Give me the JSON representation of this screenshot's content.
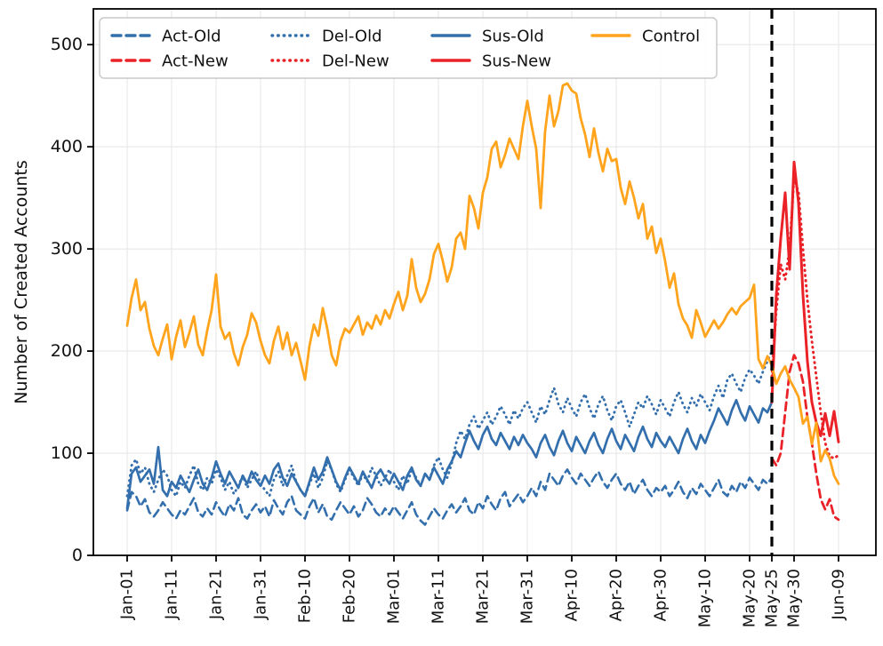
{
  "chart_data": {
    "type": "line",
    "title": "",
    "xlabel": "",
    "ylabel": "Number of Created Accounts",
    "x_unit": "days since Jan-01",
    "xlim": [
      -7.6,
      168.4
    ],
    "ylim": [
      0,
      535
    ],
    "grid": true,
    "grid_color": "#e7e7e7",
    "spine_color": "#000000",
    "tick_color": "#111111",
    "y_ticks": [
      0,
      100,
      200,
      300,
      400,
      500
    ],
    "x_ticks": [
      {
        "day": 0,
        "label": "Jan-01"
      },
      {
        "day": 10,
        "label": "Jan-11"
      },
      {
        "day": 20,
        "label": "Jan-21"
      },
      {
        "day": 30,
        "label": "Jan-31"
      },
      {
        "day": 40,
        "label": "Feb-10"
      },
      {
        "day": 50,
        "label": "Feb-20"
      },
      {
        "day": 60,
        "label": "Mar-01"
      },
      {
        "day": 70,
        "label": "Mar-11"
      },
      {
        "day": 80,
        "label": "Mar-21"
      },
      {
        "day": 90,
        "label": "Mar-31"
      },
      {
        "day": 100,
        "label": "Apr-10"
      },
      {
        "day": 110,
        "label": "Apr-20"
      },
      {
        "day": 120,
        "label": "Apr-30"
      },
      {
        "day": 130,
        "label": "May-10"
      },
      {
        "day": 140,
        "label": "May-20"
      },
      {
        "day": 145,
        "label": "May-25"
      },
      {
        "day": 150,
        "label": "May-30"
      },
      {
        "day": 160,
        "label": "Jun-09"
      }
    ],
    "event_line": {
      "day": 145,
      "date": "May-25",
      "color": "#000000",
      "style": "dashed"
    },
    "legend": {
      "position": "upper left",
      "border_color": "#c8c8c8",
      "entries": [
        "Act-Old",
        "Act-New",
        "Del-Old",
        "Del-New",
        "Sus-Old",
        "Sus-New",
        "Control"
      ]
    },
    "series": [
      {
        "name": "Act-Old",
        "color": "#346fad",
        "style": "dashed",
        "width": 2.6,
        "start_day": 0,
        "values": [
          44,
          62,
          58,
          48,
          55,
          42,
          38,
          44,
          52,
          46,
          40,
          36,
          44,
          40,
          48,
          56,
          42,
          38,
          46,
          40,
          52,
          44,
          38,
          50,
          44,
          56,
          40,
          36,
          44,
          50,
          42,
          48,
          38,
          54,
          46,
          40,
          52,
          58,
          44,
          40,
          36,
          48,
          56,
          42,
          50,
          38,
          35,
          44,
          52,
          46,
          40,
          48,
          38,
          44,
          56,
          50,
          42,
          38,
          46,
          40,
          48,
          42,
          36,
          44,
          52,
          40,
          34,
          30,
          38,
          46,
          40,
          36,
          44,
          50,
          42,
          48,
          56,
          44,
          40,
          52,
          46,
          58,
          50,
          44,
          56,
          62,
          48,
          54,
          60,
          52,
          58,
          66,
          58,
          72,
          64,
          80,
          74,
          68,
          78,
          84,
          76,
          70,
          80,
          74,
          68,
          76,
          82,
          72,
          66,
          74,
          80,
          70,
          64,
          72,
          60,
          68,
          74,
          64,
          58,
          66,
          62,
          68,
          58,
          64,
          72,
          62,
          56,
          66,
          60,
          70,
          64,
          58,
          66,
          74,
          62,
          58,
          68,
          62,
          72,
          66,
          76,
          70,
          64,
          74,
          70,
          76
        ]
      },
      {
        "name": "Act-New",
        "color": "#ea2127",
        "style": "dashed",
        "width": 2.8,
        "start_day": 145,
        "values": [
          95,
          88,
          100,
          140,
          180,
          196,
          188,
          170,
          135,
          110,
          80,
          55,
          45,
          55,
          38,
          35
        ]
      },
      {
        "name": "Del-Old",
        "color": "#346fad",
        "style": "dotted",
        "width": 2.8,
        "start_day": 0,
        "values": [
          58,
          88,
          94,
          80,
          86,
          70,
          62,
          74,
          84,
          78,
          64,
          58,
          72,
          66,
          78,
          88,
          70,
          64,
          76,
          70,
          84,
          76,
          64,
          72,
          60,
          68,
          78,
          66,
          74,
          82,
          70,
          64,
          58,
          74,
          82,
          68,
          78,
          88,
          72,
          64,
          58,
          70,
          80,
          66,
          76,
          92,
          84,
          70,
          62,
          74,
          84,
          76,
          68,
          80,
          72,
          86,
          78,
          68,
          76,
          84,
          72,
          64,
          78,
          70,
          84,
          76,
          68,
          80,
          74,
          88,
          96,
          84,
          76,
          90,
          110,
          122,
          114,
          128,
          136,
          124,
          132,
          140,
          128,
          136,
          146,
          138,
          128,
          142,
          134,
          144,
          150,
          140,
          130,
          146,
          138,
          152,
          164,
          148,
          140,
          154,
          144,
          136,
          150,
          158,
          144,
          134,
          148,
          156,
          142,
          132,
          146,
          152,
          140,
          126,
          138,
          150,
          144,
          156,
          148,
          138,
          152,
          144,
          136,
          150,
          160,
          148,
          140,
          154,
          146,
          158,
          150,
          142,
          156,
          166,
          154,
          172,
          178,
          168,
          160,
          174,
          182,
          176,
          168,
          180,
          190,
          200
        ]
      },
      {
        "name": "Del-New",
        "color": "#ea2127",
        "style": "dotted",
        "width": 3.0,
        "start_day": 145,
        "values": [
          175,
          240,
          285,
          270,
          300,
          370,
          355,
          300,
          250,
          210,
          175,
          140,
          110,
          97,
          95,
          98
        ]
      },
      {
        "name": "Sus-Old",
        "color": "#346fad",
        "style": "solid",
        "width": 2.7,
        "start_day": 0,
        "values": [
          46,
          80,
          86,
          72,
          78,
          84,
          70,
          106,
          64,
          58,
          72,
          66,
          78,
          70,
          62,
          74,
          84,
          70,
          64,
          76,
          92,
          80,
          70,
          82,
          74,
          66,
          78,
          70,
          82,
          74,
          68,
          78,
          70,
          84,
          90,
          76,
          68,
          80,
          72,
          64,
          58,
          72,
          86,
          74,
          82,
          96,
          84,
          72,
          64,
          76,
          86,
          78,
          70,
          82,
          74,
          66,
          78,
          84,
          76,
          70,
          80,
          72,
          64,
          78,
          86,
          74,
          68,
          80,
          74,
          86,
          78,
          70,
          84,
          92,
          102,
          96,
          110,
          122,
          112,
          104,
          118,
          126,
          114,
          108,
          120,
          112,
          104,
          116,
          108,
          118,
          110,
          104,
          96,
          110,
          118,
          106,
          98,
          112,
          122,
          110,
          102,
          116,
          108,
          100,
          112,
          120,
          108,
          100,
          114,
          124,
          112,
          104,
          118,
          110,
          102,
          116,
          126,
          114,
          106,
          120,
          112,
          106,
          116,
          108,
          100,
          114,
          124,
          112,
          104,
          118,
          110,
          122,
          132,
          144,
          136,
          128,
          142,
          152,
          140,
          132,
          146,
          138,
          130,
          144,
          140,
          150
        ]
      },
      {
        "name": "Sus-New",
        "color": "#ea2127",
        "style": "solid",
        "width": 3.0,
        "start_day": 145,
        "values": [
          150,
          255,
          310,
          355,
          280,
          385,
          345,
          255,
          190,
          150,
          130,
          117,
          139,
          117,
          141,
          111
        ]
      },
      {
        "name": "Control",
        "color": "#ffa41c",
        "style": "solid",
        "width": 2.8,
        "start_day": 0,
        "values": [
          225,
          252,
          270,
          240,
          248,
          222,
          205,
          196,
          212,
          226,
          192,
          214,
          230,
          204,
          218,
          234,
          206,
          196,
          220,
          240,
          275,
          224,
          212,
          218,
          198,
          186,
          204,
          216,
          237,
          228,
          210,
          196,
          188,
          210,
          224,
          202,
          218,
          196,
          208,
          190,
          172,
          205,
          226,
          215,
          242,
          222,
          196,
          186,
          210,
          222,
          218,
          226,
          234,
          216,
          228,
          222,
          235,
          226,
          240,
          232,
          246,
          258,
          240,
          254,
          290,
          262,
          248,
          256,
          270,
          295,
          305,
          288,
          268,
          282,
          310,
          316,
          300,
          352,
          340,
          320,
          355,
          370,
          398,
          405,
          380,
          392,
          408,
          398,
          388,
          420,
          445,
          420,
          398,
          340,
          415,
          450,
          420,
          435,
          460,
          462,
          455,
          452,
          428,
          412,
          390,
          418,
          394,
          376,
          398,
          386,
          388,
          360,
          344,
          366,
          350,
          330,
          344,
          310,
          322,
          296,
          310,
          288,
          262,
          276,
          246,
          232,
          225,
          213,
          240,
          228,
          214,
          222,
          230,
          222,
          228,
          236,
          242,
          236,
          244,
          248,
          252,
          265,
          192,
          183,
          195,
          186,
          168,
          178,
          185,
          172,
          164,
          155,
          129,
          136,
          109,
          130,
          92,
          103,
          95,
          78,
          70
        ]
      }
    ]
  }
}
